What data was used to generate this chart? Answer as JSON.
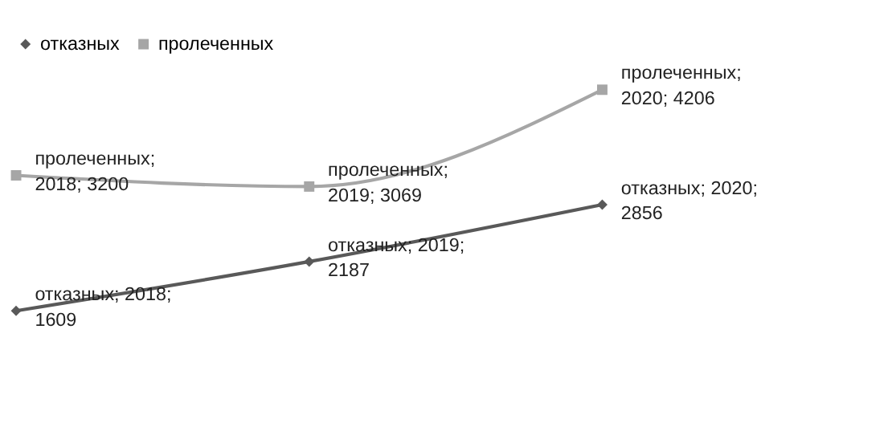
{
  "chart_data": {
    "type": "line",
    "categories": [
      null,
      null,
      null
    ],
    "series": [
      {
        "name": "отказных",
        "color": "#595959",
        "marker": "diamond",
        "values": [
          1609,
          2187,
          2856
        ],
        "value_labels": [
          "отказных; 2018; 1609",
          "отказных; 2019; 2187",
          "отказных; 2020; 2856"
        ]
      },
      {
        "name": "пролеченных",
        "color": "#a6a6a6",
        "marker": "square",
        "values": [
          3200,
          3069,
          4206
        ],
        "value_labels": [
          "пролеченных; 2018; 3200",
          "пролеченных; 2019; 3069",
          "пролеченных; 2020; 4206"
        ]
      }
    ],
    "legend": "top",
    "tick_labels": false,
    "grid": false,
    "line_style": "solid"
  }
}
